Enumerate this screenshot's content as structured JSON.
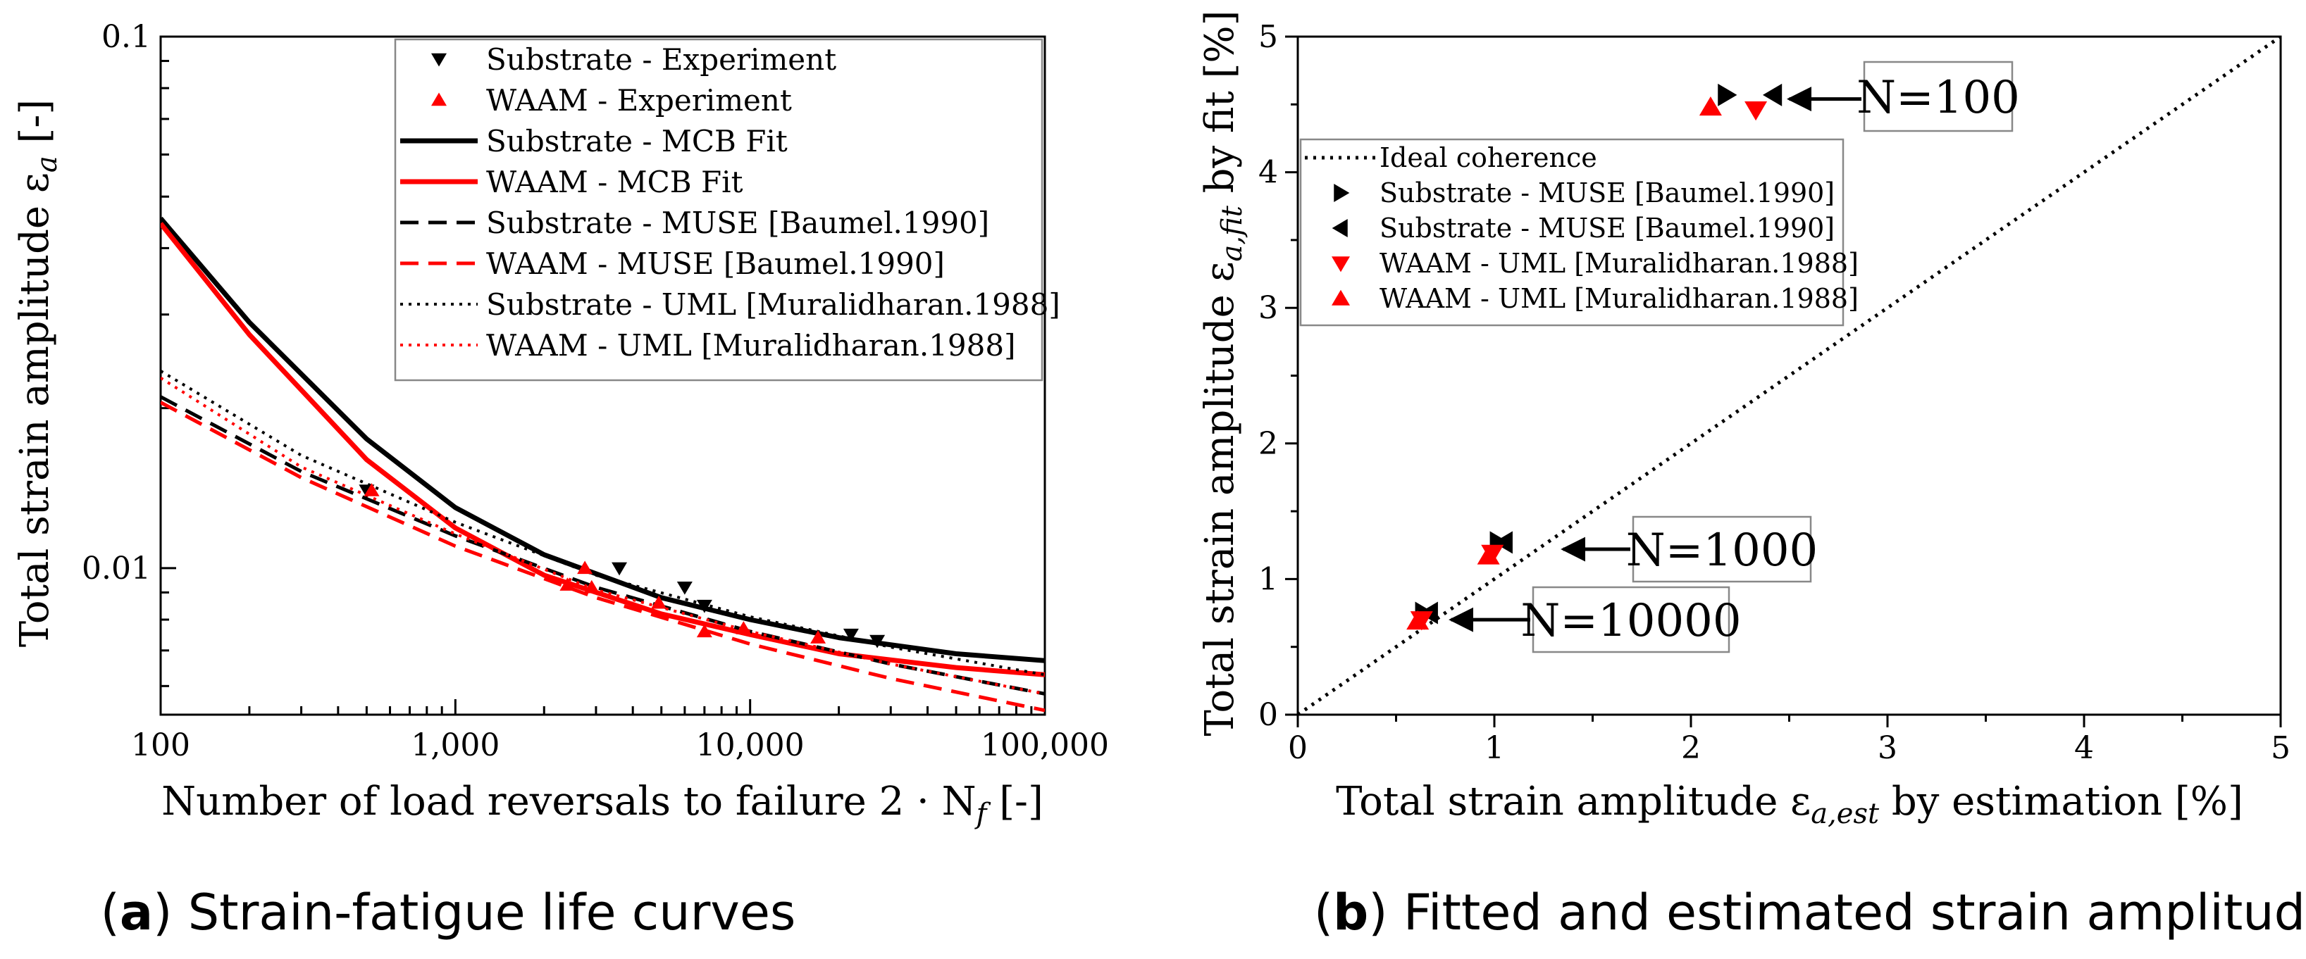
{
  "chart_data": [
    {
      "id": "a",
      "type": "line",
      "caption_letter": "a",
      "caption_text": " Strain-fatigue life curves",
      "xlabel": "Number of load reversals to failure 2 · N",
      "xlabel_sub": "f",
      "xlabel_tail": "  [-]",
      "ylabel": "Total strain amplitude ε",
      "ylabel_sub": "a",
      "ylabel_tail": "  [-]",
      "xscale": "log",
      "yscale": "log",
      "xlim": [
        100,
        100000
      ],
      "ylim": [
        0.0053,
        0.1
      ],
      "xticks": [
        {
          "value": 100,
          "label": "100"
        },
        {
          "value": 1000,
          "label": "1,000"
        },
        {
          "value": 10000,
          "label": "10,000"
        },
        {
          "value": 100000,
          "label": "100,000"
        }
      ],
      "yticks": [
        {
          "value": 0.01,
          "label": "0.01"
        },
        {
          "value": 0.1,
          "label": "0.1"
        }
      ],
      "legend_position": "top-right",
      "series": [
        {
          "name": "Substrate - Experiment",
          "kind": "scatter",
          "marker": "triangle-down",
          "color": "#000000",
          "points": [
            [
              500,
              0.014
            ],
            [
              3600,
              0.01
            ],
            [
              6000,
              0.0092
            ],
            [
              7000,
              0.0085
            ],
            [
              22000,
              0.0075
            ],
            [
              27000,
              0.0073
            ]
          ]
        },
        {
          "name": "WAAM - Experiment",
          "kind": "scatter",
          "marker": "triangle-up",
          "color": "#ff0000",
          "points": [
            [
              520,
              0.014
            ],
            [
              2400,
              0.0093
            ],
            [
              2750,
              0.01
            ],
            [
              2900,
              0.0092
            ],
            [
              4900,
              0.0086
            ],
            [
              7000,
              0.0076
            ],
            [
              9500,
              0.0077
            ],
            [
              17000,
              0.0074
            ]
          ]
        },
        {
          "name": "Substrate - MCB Fit",
          "kind": "line",
          "style": "solid",
          "width": 7,
          "color": "#000000",
          "points": [
            [
              100,
              0.0455
            ],
            [
              200,
              0.029
            ],
            [
              500,
              0.0175
            ],
            [
              1000,
              0.013
            ],
            [
              2000,
              0.0106
            ],
            [
              5000,
              0.0088
            ],
            [
              10000,
              0.008
            ],
            [
              20000,
              0.0074
            ],
            [
              50000,
              0.0069
            ],
            [
              100000,
              0.0067
            ]
          ]
        },
        {
          "name": "WAAM - MCB Fit",
          "kind": "line",
          "style": "solid",
          "width": 7,
          "color": "#ff0000",
          "points": [
            [
              100,
              0.0445
            ],
            [
              200,
              0.0275
            ],
            [
              500,
              0.016
            ],
            [
              1000,
              0.0119
            ],
            [
              2000,
              0.0097
            ],
            [
              5000,
              0.0082
            ],
            [
              10000,
              0.0075
            ],
            [
              20000,
              0.0069
            ],
            [
              50000,
              0.0065
            ],
            [
              100000,
              0.0063
            ]
          ]
        },
        {
          "name": "Substrate - MUSE [Baumel.1990]",
          "kind": "line",
          "style": "dashed",
          "width": 5,
          "color": "#000000",
          "points": [
            [
              100,
              0.021
            ],
            [
              300,
              0.0152
            ],
            [
              1000,
              0.0115
            ],
            [
              3000,
              0.0092
            ],
            [
              10000,
              0.0076
            ],
            [
              30000,
              0.0066
            ],
            [
              100000,
              0.0058
            ]
          ]
        },
        {
          "name": "WAAM - MUSE [Baumel.1990]",
          "kind": "line",
          "style": "dashed",
          "width": 5,
          "color": "#ff0000",
          "points": [
            [
              100,
              0.0205
            ],
            [
              300,
              0.0148
            ],
            [
              1000,
              0.011
            ],
            [
              3000,
              0.0088
            ],
            [
              10000,
              0.0072
            ],
            [
              30000,
              0.0062
            ],
            [
              100000,
              0.0054
            ]
          ]
        },
        {
          "name": "Substrate - UML [Muralidharan.1988]",
          "kind": "line",
          "style": "dotted",
          "width": 4,
          "color": "#000000",
          "points": [
            [
              100,
              0.0235
            ],
            [
              300,
              0.0163
            ],
            [
              1000,
              0.0122
            ],
            [
              3000,
              0.0097
            ],
            [
              10000,
              0.0081
            ],
            [
              30000,
              0.0071
            ],
            [
              100000,
              0.0063
            ]
          ]
        },
        {
          "name": "WAAM - UML [Muralidharan.1988]",
          "kind": "line",
          "style": "dotted",
          "width": 4,
          "color": "#ff0000",
          "points": [
            [
              100,
              0.0228
            ],
            [
              300,
              0.0155
            ],
            [
              1000,
              0.0116
            ],
            [
              3000,
              0.0091
            ],
            [
              10000,
              0.0076
            ],
            [
              30000,
              0.0066
            ],
            [
              100000,
              0.0058
            ]
          ]
        }
      ]
    },
    {
      "id": "b",
      "type": "scatter",
      "caption_letter": "b",
      "caption_text": " Fitted and estimated strain amplitude",
      "xlabel": "Total strain amplitude ε",
      "xlabel_sub": "a,est",
      "xlabel_tail": " by estimation [%]",
      "ylabel": "Total strain amplitude ε",
      "ylabel_sub": "a,fit",
      "ylabel_tail": " by fit [%]",
      "xlim": [
        0,
        5
      ],
      "ylim": [
        0,
        5
      ],
      "xticks": [
        {
          "value": 0,
          "label": "0"
        },
        {
          "value": 1,
          "label": "1"
        },
        {
          "value": 2,
          "label": "2"
        },
        {
          "value": 3,
          "label": "3"
        },
        {
          "value": 4,
          "label": "4"
        },
        {
          "value": 5,
          "label": "5"
        }
      ],
      "yticks": [
        {
          "value": 0,
          "label": "0"
        },
        {
          "value": 1,
          "label": "1"
        },
        {
          "value": 2,
          "label": "2"
        },
        {
          "value": 3,
          "label": "3"
        },
        {
          "value": 4,
          "label": "4"
        },
        {
          "value": 5,
          "label": "5"
        }
      ],
      "legend_position": "top-left",
      "series": [
        {
          "name": "Ideal coherence",
          "kind": "line",
          "style": "dotted",
          "width": 5,
          "color": "#000000",
          "points": [
            [
              0,
              0
            ],
            [
              5,
              5
            ]
          ]
        },
        {
          "name": "Substrate - MUSE [Baumel.1990]",
          "kind": "scatter",
          "marker": "triangle-right",
          "color": "#000000",
          "points": [
            [
              2.18,
              4.57
            ],
            [
              1.02,
              1.27
            ],
            [
              0.64,
              0.75
            ]
          ]
        },
        {
          "name": "Substrate - MUSE [Baumel.1990]",
          "kind": "scatter",
          "marker": "triangle-left",
          "color": "#000000",
          "points": [
            [
              2.42,
              4.57
            ],
            [
              1.05,
              1.27
            ],
            [
              0.67,
              0.75
            ]
          ]
        },
        {
          "name": "WAAM - UML [Muralidharan.1988]",
          "kind": "scatter",
          "marker": "triangle-down",
          "color": "#ff0000",
          "points": [
            [
              2.33,
              4.46
            ],
            [
              0.99,
              1.19
            ],
            [
              0.63,
              0.7
            ]
          ]
        },
        {
          "name": "WAAM - UML [Muralidharan.1988]",
          "kind": "scatter",
          "marker": "triangle-up",
          "color": "#ff0000",
          "points": [
            [
              2.1,
              4.48
            ],
            [
              0.97,
              1.17
            ],
            [
              0.61,
              0.69
            ]
          ]
        }
      ],
      "annotations": [
        {
          "text": "N=100",
          "arrow_target": [
            2.5,
            4.54
          ]
        },
        {
          "text": "N=1000",
          "arrow_target": [
            1.35,
            1.22
          ]
        },
        {
          "text": "N=10000",
          "arrow_target": [
            0.78,
            0.7
          ]
        }
      ]
    }
  ]
}
